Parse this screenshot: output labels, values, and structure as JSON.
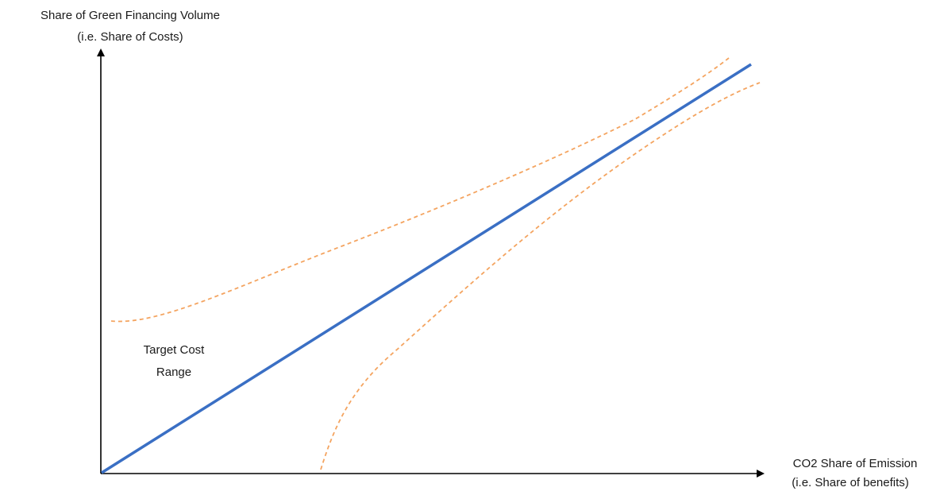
{
  "chart_data": {
    "type": "line",
    "y_axis_label": [
      "Share of Green Financing Volume",
      "(i.e. Share of Costs)"
    ],
    "x_axis_label": [
      "CO2 Share of Emission",
      "(i.e. Share of benefits)"
    ],
    "annotation": [
      "Target Cost",
      "Range"
    ],
    "colors": {
      "axis": "#000000",
      "main_line": "#3a6fc4",
      "range_lines": "#f4a460"
    }
  }
}
